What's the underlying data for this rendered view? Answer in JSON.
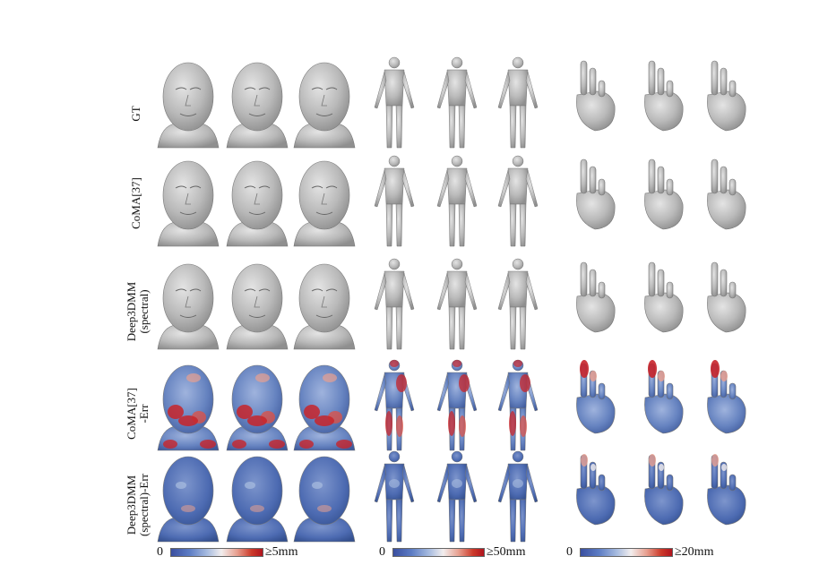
{
  "rows": [
    {
      "key": "gt",
      "line1": "GT",
      "line2": "",
      "style": "gray"
    },
    {
      "key": "coma",
      "line1": "CoMA[37]",
      "line2": "",
      "style": "gray"
    },
    {
      "key": "deep",
      "line1": "Deep3DMM",
      "line2": "(spectral)",
      "style": "gray"
    },
    {
      "key": "coma_err",
      "line1": "CoMA[37]",
      "line2": "-Err",
      "style": "err_high"
    },
    {
      "key": "deep_err",
      "line1": "Deep3DMM",
      "line2": "(spectral)-Err",
      "style": "err_low"
    }
  ],
  "colorbars": [
    {
      "min_label": "0",
      "max_label": "≥5mm"
    },
    {
      "min_label": "0",
      "max_label": "≥50mm"
    },
    {
      "min_label": "0",
      "max_label": "≥20mm"
    }
  ],
  "colors": {
    "gray_mesh": "#b9b9b9",
    "err_blue": "#4a68b0",
    "err_light": "#b7c6e6",
    "err_red": "#c8242a"
  },
  "mesh_types": [
    "face",
    "face",
    "face",
    "body",
    "body",
    "body",
    "hand",
    "hand",
    "hand"
  ]
}
